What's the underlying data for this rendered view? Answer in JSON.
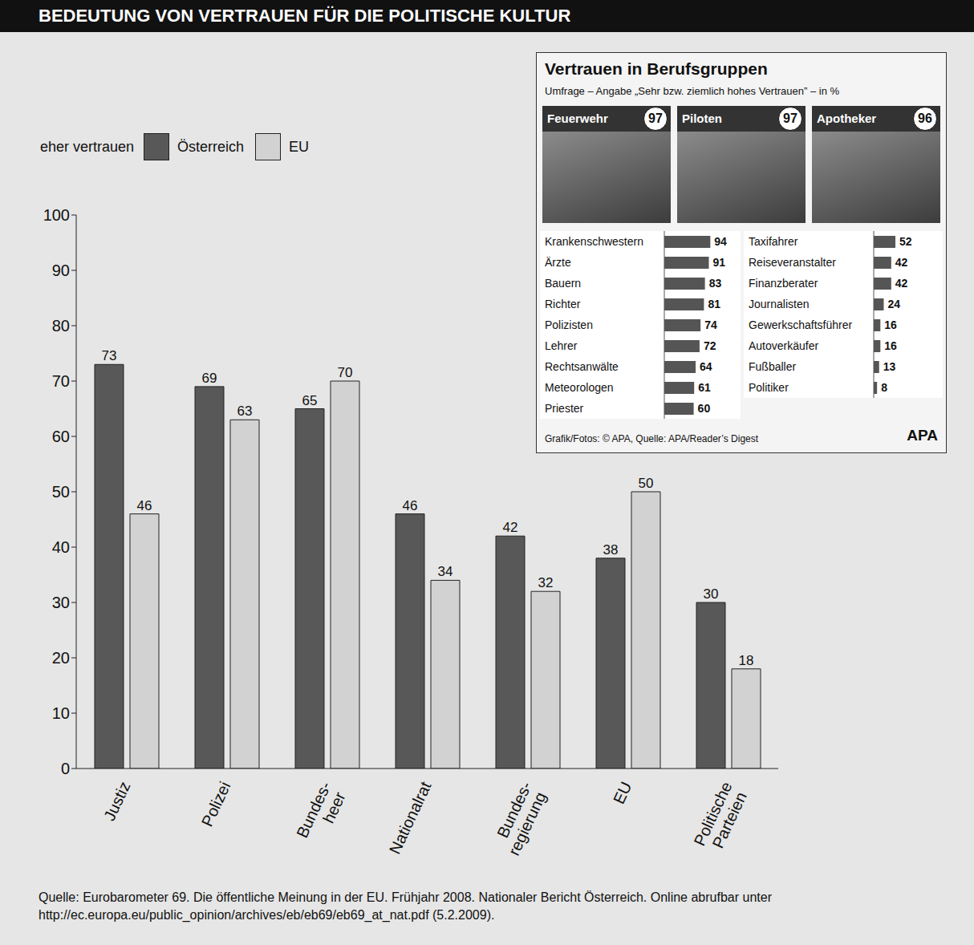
{
  "header": {
    "title": "BEDEUTUNG VON VERTRAUEN FÜR DIE POLITISCHE KULTUR",
    "source": "Quelle: Eurobarometer 69. Die öffentliche Meinung in der EU. Frühjahr 2008. Nationaler Bericht Österreich. Online abrufbar unter http://ec.europa.eu/public_opinion/archives/eb/eb69/eb69_at_nat.pdf (5.2.2009)."
  },
  "chart_data": [
    {
      "type": "bar",
      "legend_title": "eher vertrauen",
      "categories": [
        "Justiz",
        "Polizei",
        "Bundes-heer",
        "Nationalrat",
        "Bundes-regierung",
        "EU",
        "Politische Parteien"
      ],
      "series": [
        {
          "name": "Österreich",
          "color": "#585858",
          "values": [
            73,
            69,
            65,
            46,
            42,
            38,
            30
          ]
        },
        {
          "name": "EU",
          "color": "#d2d2d2",
          "values": [
            46,
            63,
            70,
            34,
            32,
            50,
            18
          ]
        }
      ],
      "ylim": [
        0,
        100
      ],
      "yticks": [
        0,
        10,
        20,
        30,
        40,
        50,
        60,
        70,
        80,
        90,
        100
      ],
      "grid": false,
      "data_labels": true,
      "legend": "top-left"
    },
    {
      "type": "bar",
      "title": "Vertrauen in Berufsgruppen",
      "subtitle": "Umfrage – Angabe „Sehr bzw. ziemlich hohes Vertrauen” – in %",
      "categories": [
        "Feuerwehr",
        "Piloten",
        "Apotheker",
        "Krankenschwestern",
        "Ärzte",
        "Bauern",
        "Richter",
        "Polizisten",
        "Lehrer",
        "Rechtsanwälte",
        "Meteorologen",
        "Priester",
        "Taxifahrer",
        "Reiseveranstalter",
        "Finanzberater",
        "Journalisten",
        "Gewerkschaftsführer",
        "Autoverkäufer",
        "Fußballer",
        "Politiker"
      ],
      "values": [
        97,
        97,
        96,
        94,
        91,
        83,
        81,
        74,
        72,
        64,
        61,
        60,
        52,
        42,
        42,
        24,
        16,
        16,
        13,
        8
      ],
      "color": "#555555",
      "orientation": "horizontal",
      "xlim": [
        0,
        100
      ],
      "data_labels": true,
      "tick_labels": "y",
      "source": "Grafik/Fotos: © APA, Quelle: APA/Reader’s Digest",
      "logo": "APA"
    }
  ]
}
